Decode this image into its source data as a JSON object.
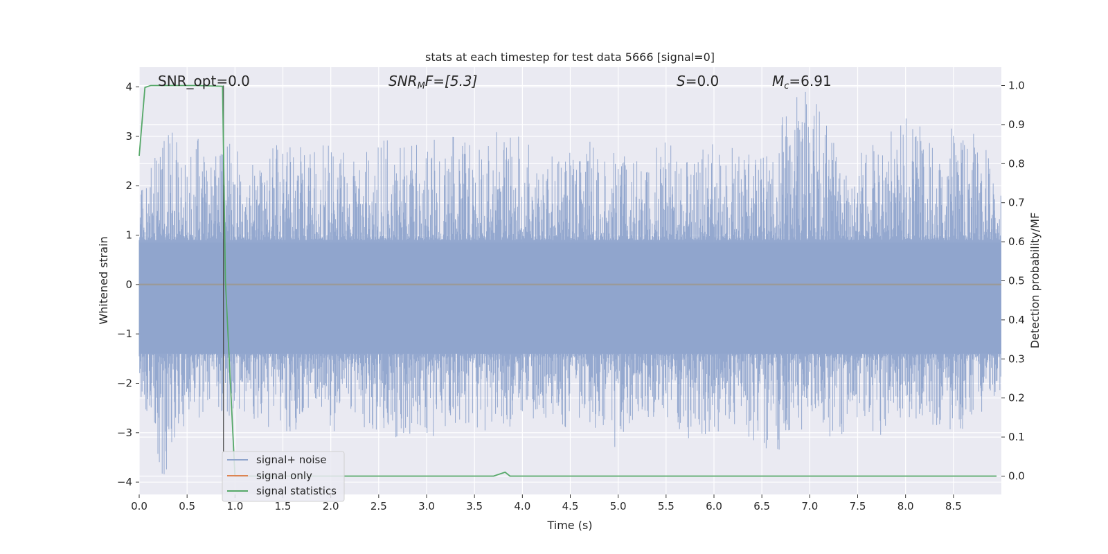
{
  "chart_data": {
    "type": "line",
    "title": "stats at each timestep for test data 5666 [signal=0]",
    "xlabel": "Time (s)",
    "ylabel_left": "Whitened strain",
    "ylabel_right": "Detection probability/MF",
    "xlim": [
      0.0,
      9.0
    ],
    "ylim_left": [
      -4.25,
      4.4
    ],
    "ylim_right": [
      -0.047,
      1.047
    ],
    "xticks": [
      "0.0",
      "0.5",
      "1.0",
      "1.5",
      "2.0",
      "2.5",
      "3.0",
      "3.5",
      "4.0",
      "4.5",
      "5.0",
      "5.5",
      "6.0",
      "6.5",
      "7.0",
      "7.5",
      "8.0",
      "8.5"
    ],
    "yticks_left": [
      "4",
      "3",
      "2",
      "1",
      "0",
      "−1",
      "−2",
      "−3",
      "−4"
    ],
    "yticks_right": [
      "1.0",
      "0.9",
      "0.8",
      "0.7",
      "0.6",
      "0.5",
      "0.4",
      "0.3",
      "0.2",
      "0.1",
      "0.0"
    ],
    "grid": true,
    "legend_position": "lower-left",
    "annotations": {
      "snr_opt": "SNR_opt=0.0",
      "snr_mf_base": "SNR",
      "snr_mf_sub": "M",
      "snr_mf_rest": "F=[5.3]",
      "s_var": "S",
      "s_rest": "=0.0",
      "mc_base": "M",
      "mc_sub": "c",
      "mc_rest": "=6.91"
    },
    "vline_x": 0.88,
    "series": [
      {
        "name": "signal+ noise",
        "color": "#8fa4cc",
        "axis": "left",
        "envelope": {
          "x": [
            0.0,
            0.25,
            0.5,
            0.75,
            1.0,
            1.25,
            1.5,
            1.75,
            2.0,
            2.25,
            2.5,
            2.75,
            3.0,
            3.25,
            3.5,
            3.75,
            4.0,
            4.25,
            4.5,
            4.75,
            5.0,
            5.25,
            5.5,
            5.75,
            6.0,
            6.25,
            6.5,
            6.75,
            7.0,
            7.25,
            7.5,
            7.75,
            8.0,
            8.25,
            8.5,
            8.75,
            9.0
          ],
          "upper": [
            2.0,
            3.0,
            3.2,
            2.7,
            2.9,
            2.4,
            3.1,
            2.7,
            2.9,
            2.5,
            3.0,
            2.8,
            2.9,
            3.0,
            2.9,
            3.1,
            3.0,
            2.5,
            2.9,
            2.9,
            2.8,
            2.6,
            3.0,
            2.7,
            2.9,
            2.8,
            2.9,
            3.7,
            4.0,
            2.9,
            2.8,
            2.9,
            3.7,
            2.9,
            3.2,
            3.2,
            2.0
          ],
          "lower": [
            -2.2,
            -3.9,
            -2.9,
            -2.6,
            -2.7,
            -2.8,
            -3.2,
            -2.8,
            -3.1,
            -2.6,
            -3.4,
            -3.0,
            -3.2,
            -2.9,
            -3.1,
            -3.0,
            -2.9,
            -2.7,
            -3.0,
            -2.9,
            -3.4,
            -2.8,
            -2.7,
            -3.2,
            -3.0,
            -2.9,
            -3.5,
            -3.3,
            -2.8,
            -3.2,
            -2.9,
            -3.1,
            -2.7,
            -2.9,
            -3.0,
            -2.8,
            -2.2
          ]
        }
      },
      {
        "name": "signal only",
        "color": "#dd8452",
        "axis": "left",
        "x": [
          0.0,
          9.0
        ],
        "y": [
          0.0,
          0.0
        ]
      },
      {
        "name": "signal statistics",
        "color": "#55a868",
        "axis": "right",
        "x": [
          0.0,
          0.06,
          0.12,
          0.3,
          0.6,
          0.87,
          0.9,
          1.0,
          1.05,
          1.5,
          2.0,
          3.0,
          3.7,
          3.82,
          3.87,
          4.5,
          5.0,
          6.0,
          7.0,
          8.0,
          8.95
        ],
        "y": [
          0.82,
          0.995,
          1.0,
          1.0,
          1.0,
          0.998,
          0.5,
          0.0,
          0.0,
          0.0,
          0.0,
          0.0,
          0.0,
          0.01,
          0.0,
          0.0,
          0.0,
          0.0,
          0.0,
          0.0,
          0.0
        ]
      }
    ]
  }
}
